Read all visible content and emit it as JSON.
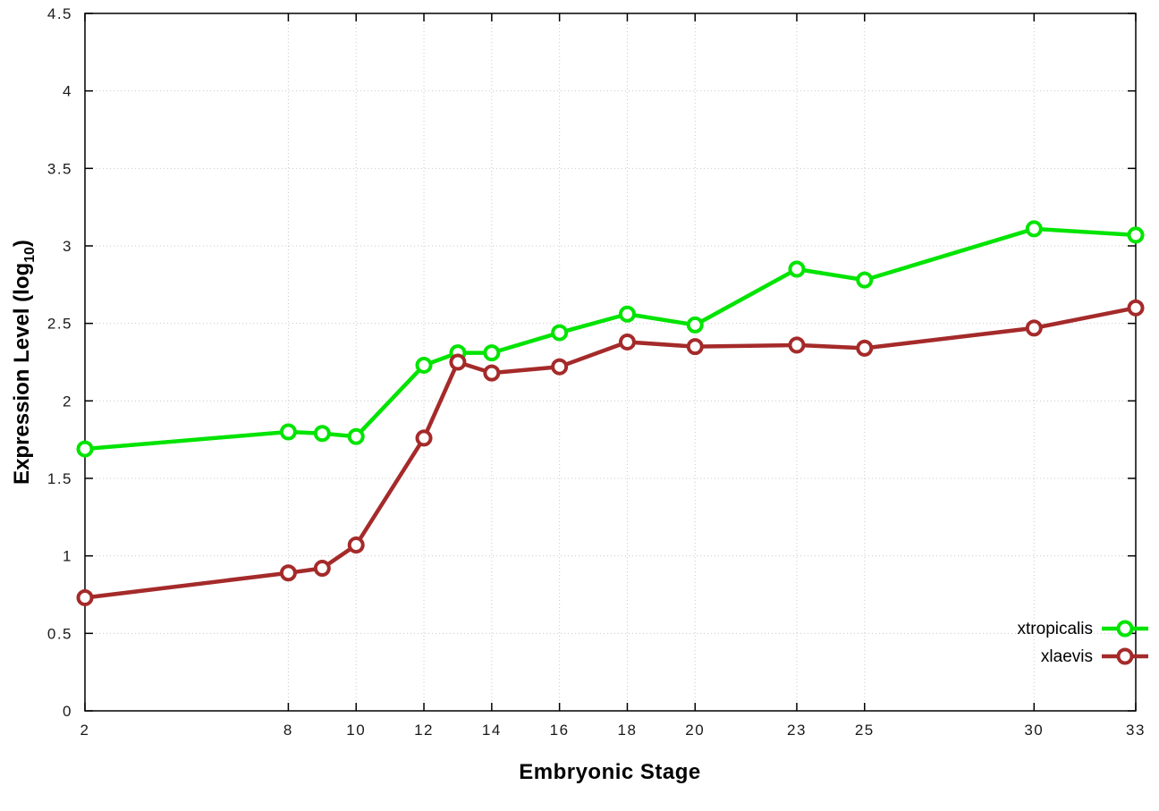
{
  "chart_data": {
    "type": "line",
    "title": "",
    "xlabel": "Embryonic Stage",
    "ylabel_prefix": "Expression Level (log",
    "ylabel_sub": "10",
    "ylabel_suffix": ")",
    "x": [
      2,
      8,
      9,
      10,
      12,
      13,
      14,
      16,
      18,
      20,
      23,
      25,
      30,
      33
    ],
    "xlim": [
      2,
      33
    ],
    "ylim": [
      0,
      4.5
    ],
    "xticks": [
      2,
      8,
      10,
      12,
      14,
      16,
      18,
      20,
      23,
      25,
      30,
      33
    ],
    "xtick_labels": [
      "2",
      "8",
      "10",
      "12",
      "14",
      "16",
      "18",
      "20",
      "23",
      "25",
      "30",
      "33"
    ],
    "yticks": [
      0,
      0.5,
      1,
      1.5,
      2,
      2.5,
      3,
      3.5,
      4,
      4.5
    ],
    "ytick_labels": [
      "0",
      "0.5",
      "1",
      "1.5",
      "2",
      "2.5",
      "3",
      "3.5",
      "4",
      "4.5"
    ],
    "grid": "dotted",
    "grid_color": "#c9c9c9",
    "axis_color": "#000000",
    "tick_label_color": "#1a1a1a",
    "background": "#ffffff",
    "legend_position": "bottom-right",
    "series": [
      {
        "name": "xtropicalis",
        "color": "#00e400",
        "values": [
          1.69,
          1.8,
          1.79,
          1.77,
          2.23,
          2.31,
          2.31,
          2.44,
          2.56,
          2.49,
          2.85,
          2.78,
          3.11,
          3.07
        ]
      },
      {
        "name": "xlaevis",
        "color": "#a52a2a",
        "values": [
          0.73,
          0.89,
          0.92,
          1.07,
          1.76,
          2.25,
          2.18,
          2.22,
          2.38,
          2.35,
          2.36,
          2.34,
          2.47,
          2.6
        ]
      }
    ]
  }
}
